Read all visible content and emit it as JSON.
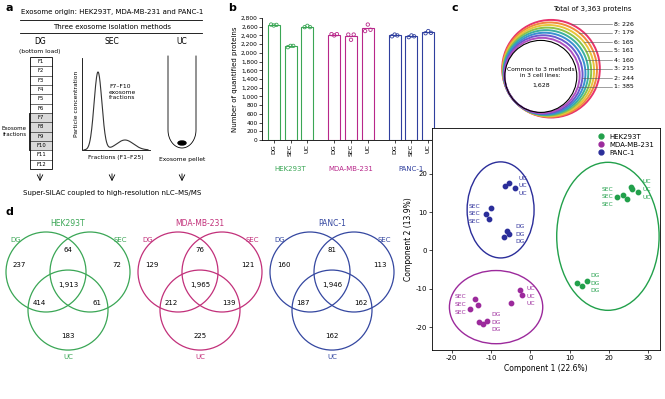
{
  "chart_data": [
    {
      "panel": "b",
      "type": "bar",
      "y_label": "Number of quantified proteins",
      "categories": [
        "DG",
        "SEC",
        "UC"
      ],
      "series": [
        {
          "name": "HEK293T",
          "color": "#3aa655",
          "values": [
            2640,
            2150,
            2600
          ],
          "replicates": [
            [
              2650,
              2628,
              2642
            ],
            [
              2130,
              2160,
              2160
            ],
            [
              2590,
              2620,
              2590
            ]
          ]
        },
        {
          "name": "MDA-MB-231",
          "color": "#b8278a",
          "values": [
            2420,
            2380,
            2560
          ],
          "replicates": [
            [
              2430,
              2400,
              2430
            ],
            [
              2420,
              2300,
              2420
            ],
            [
              2500,
              2650,
              2530
            ]
          ]
        },
        {
          "name": "PANC-1",
          "color": "#2f3f9e",
          "values": [
            2400,
            2380,
            2470
          ],
          "replicates": [
            [
              2380,
              2420,
              2400
            ],
            [
              2360,
              2400,
              2380
            ],
            [
              2450,
              2500,
              2460
            ]
          ]
        }
      ],
      "ylim": [
        0,
        2800
      ],
      "yticks": [
        0,
        200,
        400,
        600,
        800,
        {
          "value": 1000,
          "label": "1,000"
        },
        {
          "value": 1200,
          "label": "1,200"
        },
        {
          "value": 1400,
          "label": "1,400"
        },
        {
          "value": 1600,
          "label": "1,600"
        },
        {
          "value": 1800,
          "label": "1,800"
        },
        {
          "value": 2000,
          "label": "2,000"
        },
        {
          "value": 2200,
          "label": "2,200"
        },
        {
          "value": 2400,
          "label": "2,400"
        },
        {
          "value": 2600,
          "label": "2,600"
        },
        {
          "value": 2800,
          "label": "2,800"
        }
      ]
    },
    {
      "panel": "e",
      "type": "scatter",
      "x_label": "Component 1 (22.6%)",
      "y_label": "Component 2 (13.9%)",
      "xlim": [
        -25,
        33
      ],
      "ylim": [
        -26,
        32
      ],
      "xticks": [
        -20,
        -10,
        0,
        10,
        20,
        30
      ],
      "yticks": [
        -20,
        -10,
        0,
        10,
        20
      ],
      "legend": "upper right",
      "series": [
        {
          "name": "HEK293T",
          "color": "#22a04b",
          "point_labels": [
            "DG",
            "DG",
            "DG",
            "SEC",
            "SEC",
            "SEC",
            "UC",
            "UC",
            "UC"
          ],
          "x": [
            12.0,
            13.2,
            14.5,
            22.0,
            23.5,
            24.5,
            26.0,
            27.5,
            25.5
          ],
          "y": [
            -8.5,
            -9.2,
            -8.0,
            14.0,
            14.6,
            13.4,
            16.0,
            15.2,
            16.6
          ]
        },
        {
          "name": "MDA-MB-231",
          "color": "#9c2a9c",
          "point_labels": [
            "DG",
            "DG",
            "DG",
            "SEC",
            "SEC",
            "SEC",
            "UC",
            "UC",
            "UC"
          ],
          "x": [
            -13.0,
            -12.0,
            -11.0,
            -14.0,
            -13.4,
            -15.4,
            -2.6,
            -2.0,
            -5.0
          ],
          "y": [
            -18.6,
            -19.2,
            -18.5,
            -12.8,
            -14.2,
            -15.4,
            -10.4,
            -11.6,
            -13.8
          ]
        },
        {
          "name": "PANC-1",
          "color": "#2b2e9a",
          "point_labels": [
            "DG",
            "DG",
            "DG",
            "SEC",
            "SEC",
            "SEC",
            "UC",
            "UC",
            "UC"
          ],
          "x": [
            -6.0,
            -5.3,
            -6.6,
            -10.0,
            -11.2,
            -10.6,
            -5.4,
            -3.9,
            -6.4
          ],
          "y": [
            5.0,
            4.2,
            3.6,
            11.0,
            9.6,
            8.2,
            17.6,
            16.4,
            16.8
          ]
        }
      ]
    }
  ],
  "schematic": {
    "panel": "a",
    "header": "Exosome origin: HEK293T, MDA-MB-231 and PANC-1",
    "subheader": "Three exosome isolation methods",
    "methods": [
      {
        "name": "DG",
        "note": "(bottom load)",
        "fractions": [
          "F1",
          "F2",
          "F3",
          "F4",
          "F5",
          "F6",
          "F7",
          "F8",
          "F9",
          "F10",
          "F11",
          "F12"
        ],
        "side_label": "Exosome\nfractions"
      },
      {
        "name": "SEC",
        "y_label": "Particle concentration",
        "x_label": "Fractions (F1–F25)",
        "annotation": "F7–F10\nexosome\nfractions"
      },
      {
        "name": "UC",
        "annotation": "Exosome pellet"
      }
    ],
    "footer": "Super-SILAC coupled to high-resolution nLC–MS/MS"
  },
  "overlap_rings": {
    "panel": "c",
    "title": "Total of 3,363 proteins",
    "center_text": "Common to 3 methods\nin 3 cell lines:",
    "center_value": "1,628",
    "rings": [
      {
        "label": "8: 226",
        "color": "#e8336b"
      },
      {
        "label": "7: 179",
        "color": "#f08a3c"
      },
      {
        "label": "6: 165",
        "color": "#e9c43a"
      },
      {
        "label": "5: 161",
        "color": "#8bc34a"
      },
      {
        "label": "4: 160",
        "color": "#3bb0a0"
      },
      {
        "label": "3: 215",
        "color": "#3a8fd0"
      },
      {
        "label": "2: 244",
        "color": "#6a5acd"
      },
      {
        "label": "1: 385",
        "color": "#b050c0"
      }
    ]
  },
  "venn": {
    "panel": "d",
    "diagrams": [
      {
        "title": "HEK293T",
        "color": "#3aa655",
        "sets": [
          "DG",
          "SEC",
          "UC"
        ],
        "regions": [
          {
            "in": [
              "DG"
            ],
            "value": 237
          },
          {
            "in": [
              "DG",
              "SEC"
            ],
            "value": 64
          },
          {
            "in": [
              "SEC"
            ],
            "value": 72
          },
          {
            "in": [
              "DG",
              "UC"
            ],
            "value": 414
          },
          {
            "in": [
              "DG",
              "SEC",
              "UC"
            ],
            "value": 1913,
            "label": "1,913"
          },
          {
            "in": [
              "SEC",
              "UC"
            ],
            "value": 61
          },
          {
            "in": [
              "UC"
            ],
            "value": 183
          }
        ]
      },
      {
        "title": "MDA-MB-231",
        "color": "#c2307a",
        "sets": [
          "DG",
          "SEC",
          "UC"
        ],
        "regions": [
          {
            "in": [
              "DG"
            ],
            "value": 129
          },
          {
            "in": [
              "DG",
              "SEC"
            ],
            "value": 76
          },
          {
            "in": [
              "SEC"
            ],
            "value": 121
          },
          {
            "in": [
              "DG",
              "UC"
            ],
            "value": 212
          },
          {
            "in": [
              "DG",
              "SEC",
              "UC"
            ],
            "value": 1965,
            "label": "1,965"
          },
          {
            "in": [
              "SEC",
              "UC"
            ],
            "value": 139
          },
          {
            "in": [
              "UC"
            ],
            "value": 225
          }
        ]
      },
      {
        "title": "PANC-1",
        "color": "#3447a0",
        "sets": [
          "DG",
          "SEC",
          "UC"
        ],
        "regions": [
          {
            "in": [
              "DG"
            ],
            "value": 160
          },
          {
            "in": [
              "DG",
              "SEC"
            ],
            "value": 81
          },
          {
            "in": [
              "SEC"
            ],
            "value": 113
          },
          {
            "in": [
              "DG",
              "UC"
            ],
            "value": 187
          },
          {
            "in": [
              "DG",
              "SEC",
              "UC"
            ],
            "value": 1946,
            "label": "1,946"
          },
          {
            "in": [
              "SEC",
              "UC"
            ],
            "value": 162
          },
          {
            "in": [
              "UC"
            ],
            "value": 162
          }
        ]
      }
    ]
  }
}
